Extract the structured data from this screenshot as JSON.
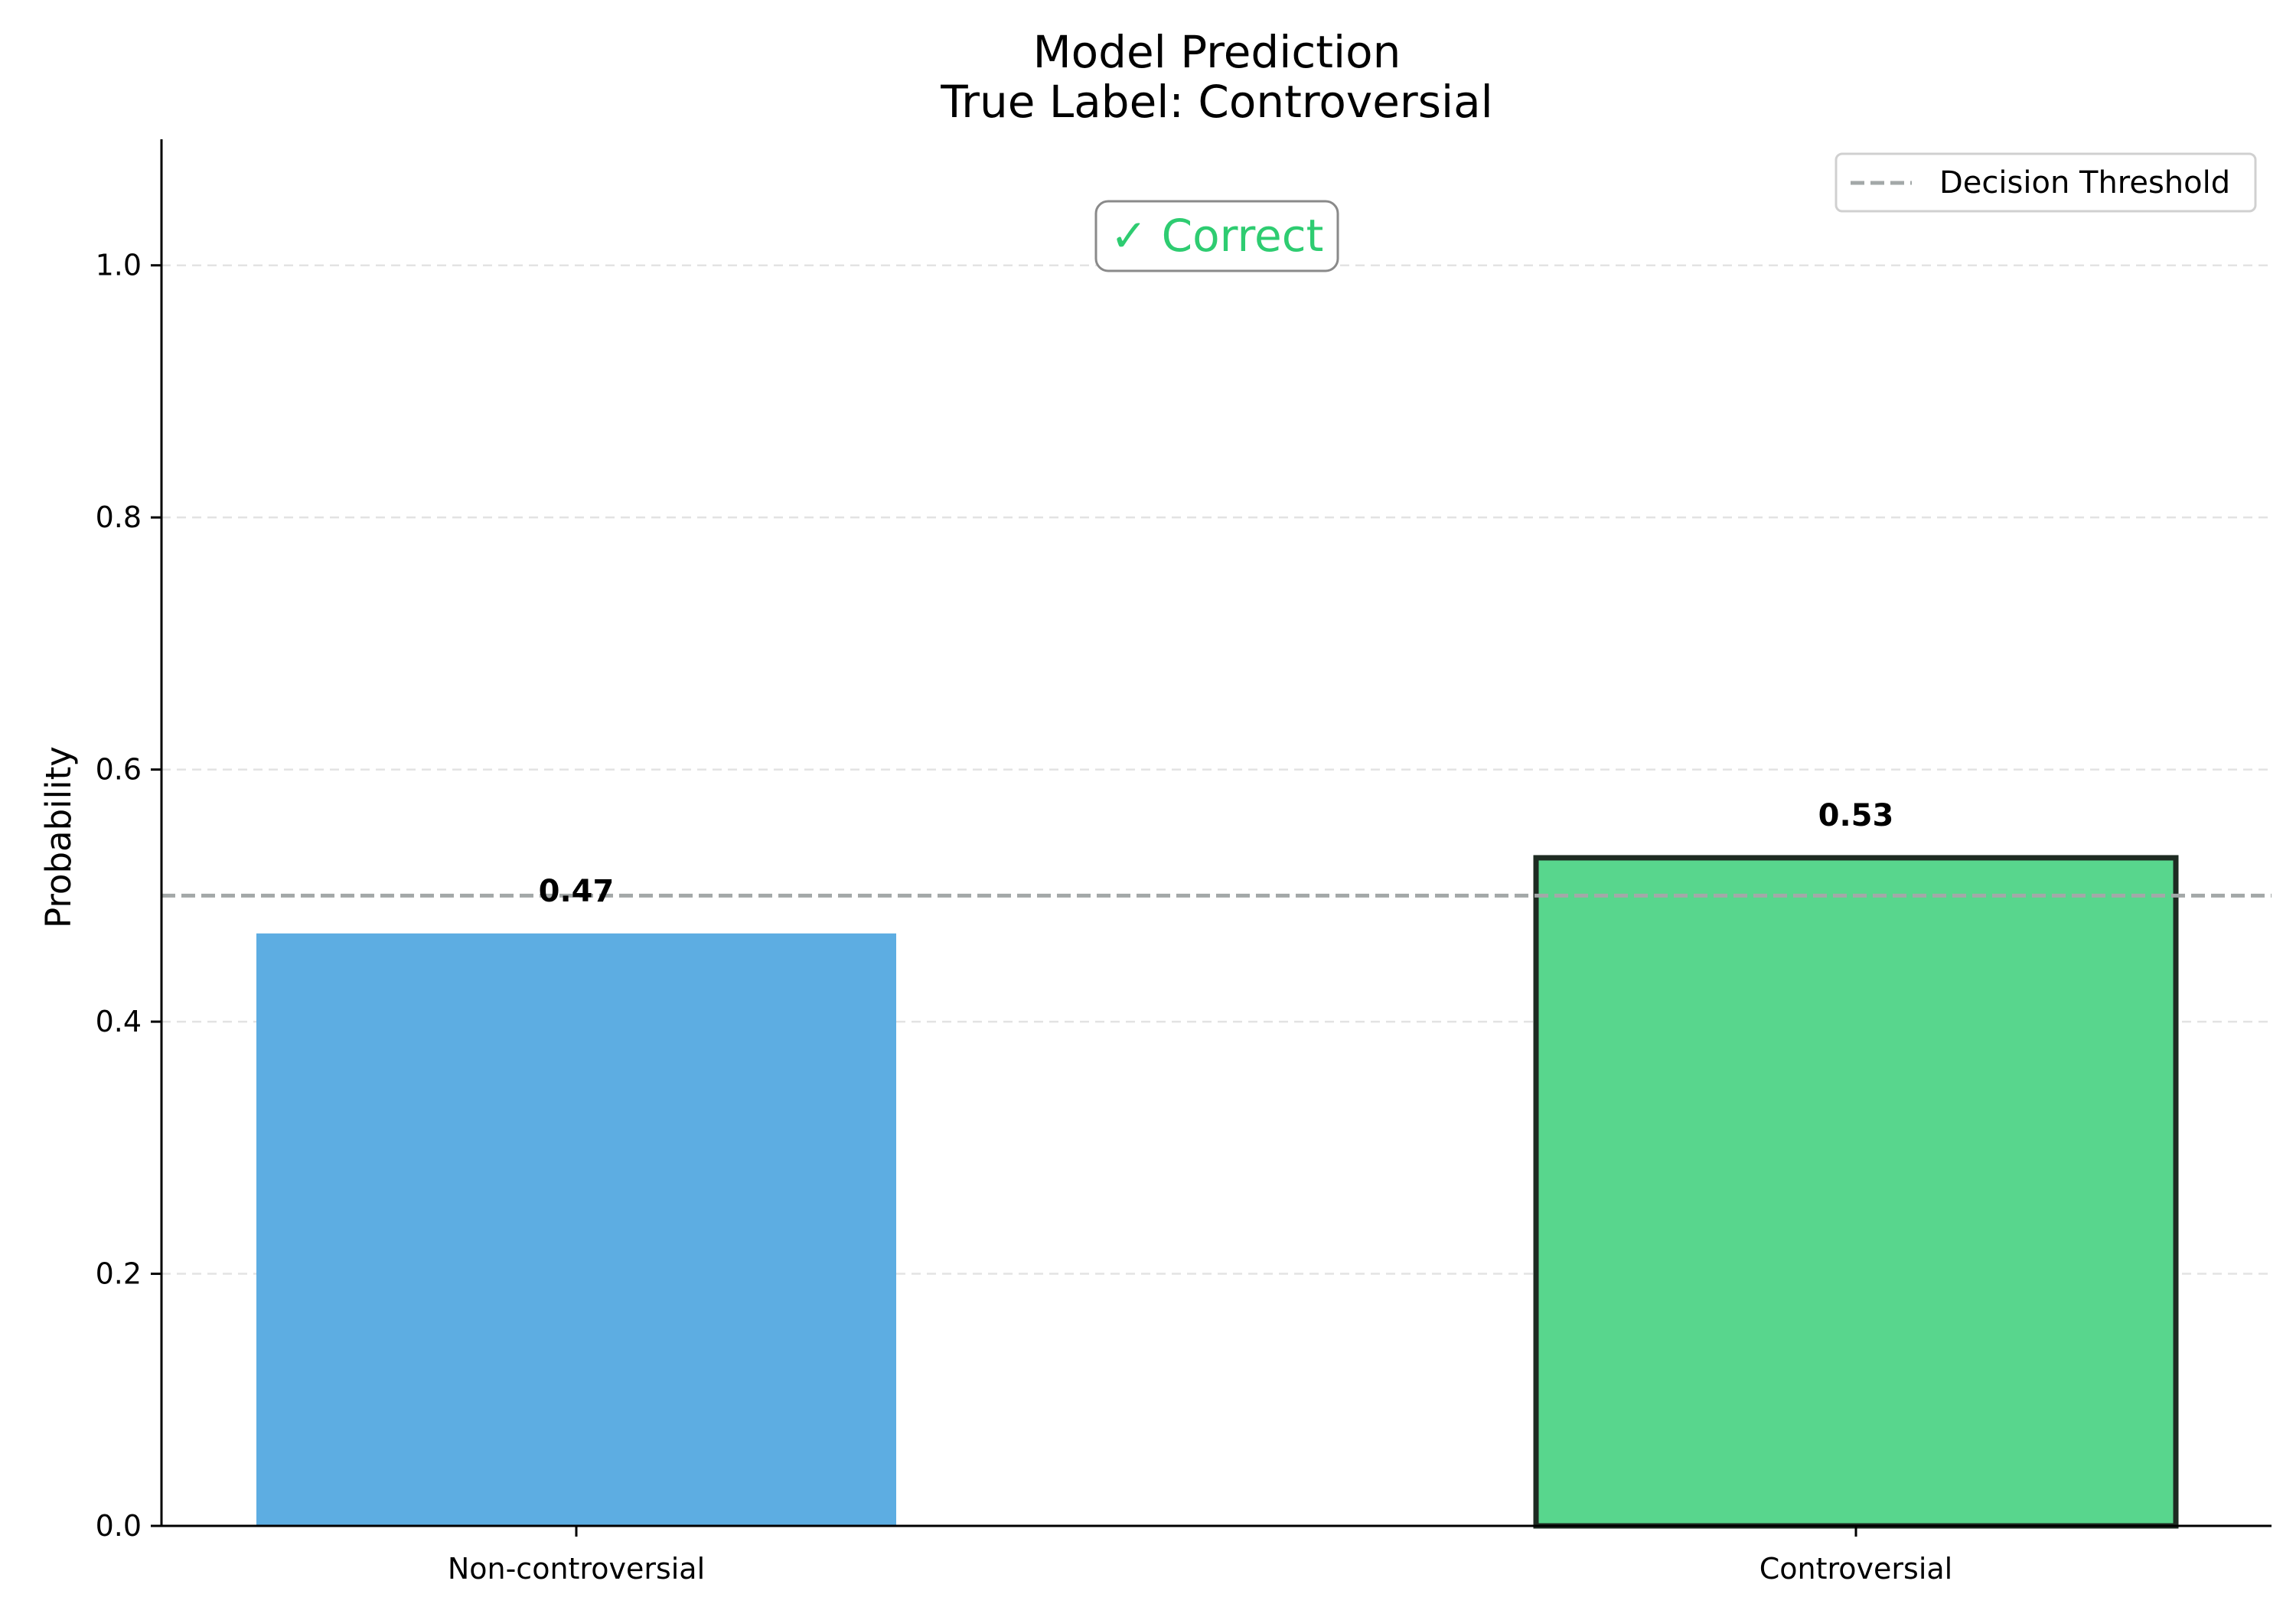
{
  "chart_data": {
    "type": "bar",
    "title": "Model Prediction",
    "subtitle": "True Label: Controversial",
    "xlabel": "",
    "ylabel": "Probability",
    "categories": [
      "Non-controversial",
      "Controversial"
    ],
    "values": [
      0.47,
      0.53
    ],
    "value_labels": [
      "0.47",
      "0.53"
    ],
    "bar_colors": [
      "#5dade2",
      "#58d68d"
    ],
    "highlighted_index": 1,
    "highlight_edge_color": "#1e2b22",
    "ylim": [
      0,
      1.1
    ],
    "yticks": [
      0.0,
      0.2,
      0.4,
      0.6,
      0.8,
      1.0
    ],
    "ytick_labels": [
      "0.0",
      "0.2",
      "0.4",
      "0.6",
      "0.8",
      "1.0"
    ],
    "grid": {
      "axis": "y",
      "style": "dashed",
      "color": "#e3e3e3"
    },
    "threshold": {
      "value": 0.5,
      "label": "Decision Threshold",
      "color": "#a3a8a8",
      "style": "dashed"
    },
    "legend": {
      "position": "top-right",
      "entries": [
        "Decision Threshold"
      ]
    },
    "annotation": {
      "text": "✓ Correct",
      "color": "#2ecc71",
      "border_color": "#8a8a8a",
      "position": "top-center"
    }
  }
}
